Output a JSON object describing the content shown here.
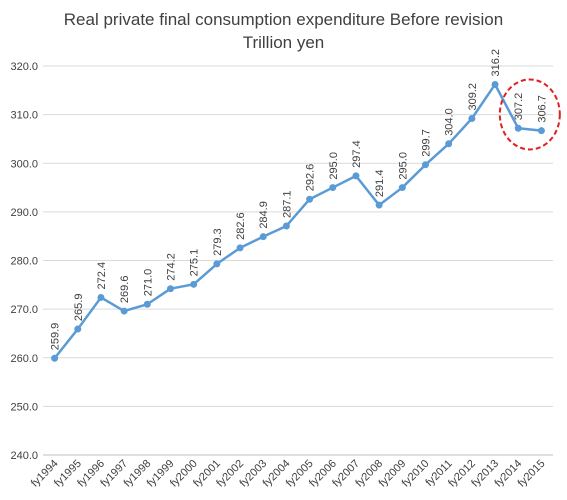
{
  "chart_data": {
    "type": "line",
    "title": "Real private final consumption expenditure Before revision",
    "subtitle": "Trillion yen",
    "categories": [
      "fy1994",
      "fy1995",
      "fy1996",
      "fy1997",
      "fy1998",
      "fy1999",
      "fy2000",
      "fy2001",
      "fy2002",
      "fy2003",
      "fy2004",
      "fy2005",
      "fy2006",
      "fy2007",
      "fy2008",
      "fy2009",
      "fy2010",
      "fy2011",
      "fy2012",
      "fy2013",
      "fy2014",
      "fy2015"
    ],
    "values": [
      259.9,
      265.9,
      272.4,
      269.6,
      271.0,
      274.2,
      275.1,
      279.3,
      282.6,
      284.9,
      287.1,
      292.6,
      295.0,
      297.4,
      291.4,
      295.0,
      299.7,
      304.0,
      309.2,
      316.2,
      307.2,
      306.7
    ],
    "data_labels": [
      "259.9",
      "265.9",
      "272.4",
      "269.6",
      "271.0",
      "274.2",
      "275.1",
      "279.3",
      "282.6",
      "284.9",
      "287.1",
      "292.6",
      "295.0",
      "297.4",
      "291.4",
      "295.0",
      "299.7",
      "304.0",
      "309.2",
      "316.2",
      "307.2",
      "306.7"
    ],
    "ylim": [
      240,
      320
    ],
    "yticks": [
      240,
      250,
      260,
      270,
      280,
      290,
      300,
      310,
      320
    ],
    "ytick_labels": [
      "240.0",
      "250.0",
      "260.0",
      "270.0",
      "280.0",
      "290.0",
      "300.0",
      "310.0",
      "320.0"
    ],
    "grid": true,
    "line_color": "#5b9bd5",
    "highlight": {
      "categories": [
        "fy2014",
        "fy2015"
      ],
      "color": "#e02020",
      "style": "dashed-ellipse"
    }
  }
}
